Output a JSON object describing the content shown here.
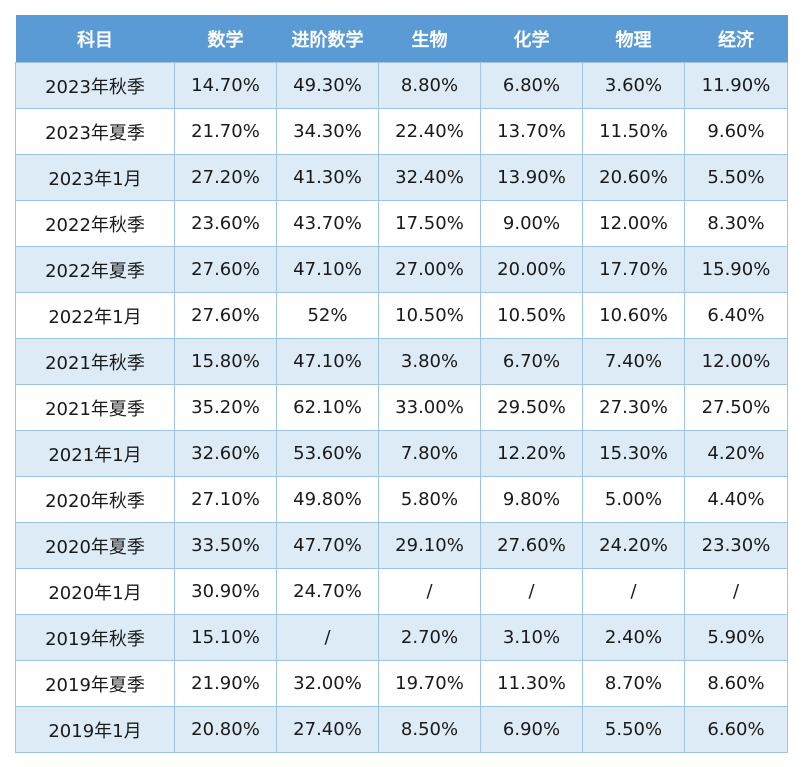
{
  "headers": [
    "科目",
    "数学",
    "进阶数学",
    "生物",
    "化学",
    "物理",
    "经济"
  ],
  "rows": [
    [
      "2023年秋季",
      "14.70%",
      "49.30%",
      "8.80%",
      "6.80%",
      "3.60%",
      "11.90%"
    ],
    [
      "2023年夏季",
      "21.70%",
      "34.30%",
      "22.40%",
      "13.70%",
      "11.50%",
      "9.60%"
    ],
    [
      "2023年1月",
      "27.20%",
      "41.30%",
      "32.40%",
      "13.90%",
      "20.60%",
      "5.50%"
    ],
    [
      "2022年秋季",
      "23.60%",
      "43.70%",
      "17.50%",
      "9.00%",
      "12.00%",
      "8.30%"
    ],
    [
      "2022年夏季",
      "27.60%",
      "47.10%",
      "27.00%",
      "20.00%",
      "17.70%",
      "15.90%"
    ],
    [
      "2022年1月",
      "27.60%",
      "52%",
      "10.50%",
      "10.50%",
      "10.60%",
      "6.40%"
    ],
    [
      "2021年秋季",
      "15.80%",
      "47.10%",
      "3.80%",
      "6.70%",
      "7.40%",
      "12.00%"
    ],
    [
      "2021年夏季",
      "35.20%",
      "62.10%",
      "33.00%",
      "29.50%",
      "27.30%",
      "27.50%"
    ],
    [
      "2021年1月",
      "32.60%",
      "53.60%",
      "7.80%",
      "12.20%",
      "15.30%",
      "4.20%"
    ],
    [
      "2020年秋季",
      "27.10%",
      "49.80%",
      "5.80%",
      "9.80%",
      "5.00%",
      "4.40%"
    ],
    [
      "2020年夏季",
      "33.50%",
      "47.70%",
      "29.10%",
      "27.60%",
      "24.20%",
      "23.30%"
    ],
    [
      "2020年1月",
      "30.90%",
      "24.70%",
      "/",
      "/",
      "/",
      "/"
    ],
    [
      "2019年秋季",
      "15.10%",
      "/",
      "2.70%",
      "3.10%",
      "2.40%",
      "5.90%"
    ],
    [
      "2019年夏季",
      "21.90%",
      "32.00%",
      "19.70%",
      "11.30%",
      "8.70%",
      "8.60%"
    ],
    [
      "2019年1月",
      "20.80%",
      "27.40%",
      "8.50%",
      "6.90%",
      "5.50%",
      "6.60%"
    ]
  ],
  "colors": {
    "header_bg": "#5b9bd5",
    "header_text": "#ffffff",
    "stripe_bg": "#ddebf7",
    "row_bg": "#ffffff",
    "grid_line": "#9dc3e6"
  }
}
